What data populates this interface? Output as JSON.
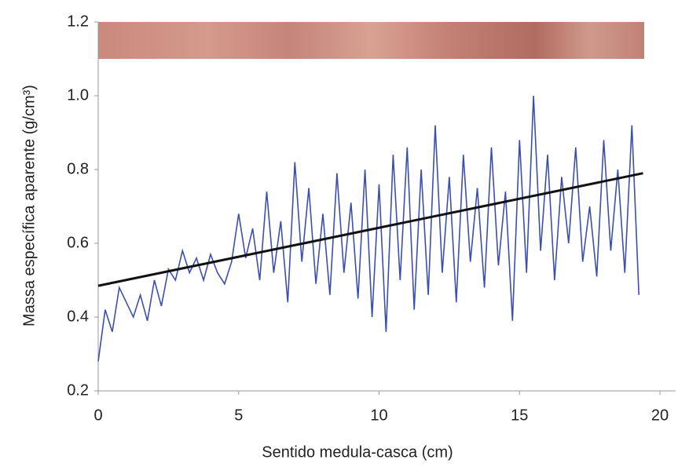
{
  "chart_data": {
    "type": "line",
    "x_label": "Sentido medula-casca (cm)",
    "y_label": "Massa específica aparente (g/cm³)",
    "xlim": [
      0,
      20.5
    ],
    "ylim": [
      0.2,
      1.2
    ],
    "xticks": [
      0,
      5,
      10,
      15,
      20
    ],
    "yticks": [
      0.2,
      0.4,
      0.6,
      0.8,
      {
        "value": 1,
        "label": "1.0"
      },
      1.2
    ],
    "series": [
      {
        "color": "#3a4fb0",
        "x": [
          0,
          0.25,
          0.5,
          0.75,
          1,
          1.25,
          1.5,
          1.75,
          2,
          2.25,
          2.5,
          2.75,
          3,
          3.25,
          3.5,
          3.75,
          4,
          4.25,
          4.5,
          4.75,
          5,
          5.25,
          5.5,
          5.75,
          6,
          6.25,
          6.5,
          6.75,
          7,
          7.25,
          7.5,
          7.75,
          8,
          8.25,
          8.5,
          8.75,
          9,
          9.25,
          9.5,
          9.75,
          10,
          10.25,
          10.5,
          10.75,
          11,
          11.25,
          11.5,
          11.75,
          12,
          12.25,
          12.5,
          12.75,
          13,
          13.25,
          13.5,
          13.75,
          14,
          14.25,
          14.5,
          14.75,
          15,
          15.25,
          15.5,
          15.75,
          16,
          16.25,
          16.5,
          16.75,
          17,
          17.25,
          17.5,
          17.75,
          18,
          18.25,
          18.5,
          18.75,
          19,
          19.25
        ],
        "values": [
          0.28,
          0.42,
          0.36,
          0.48,
          0.44,
          0.4,
          0.46,
          0.39,
          0.5,
          0.43,
          0.53,
          0.5,
          0.58,
          0.52,
          0.56,
          0.5,
          0.57,
          0.52,
          0.49,
          0.55,
          0.68,
          0.56,
          0.64,
          0.5,
          0.74,
          0.52,
          0.66,
          0.44,
          0.82,
          0.55,
          0.75,
          0.49,
          0.68,
          0.46,
          0.79,
          0.52,
          0.71,
          0.45,
          0.8,
          0.4,
          0.76,
          0.36,
          0.84,
          0.5,
          0.86,
          0.42,
          0.8,
          0.46,
          0.92,
          0.52,
          0.78,
          0.44,
          0.84,
          0.55,
          0.75,
          0.48,
          0.86,
          0.54,
          0.74,
          0.39,
          0.88,
          0.52,
          1.0,
          0.58,
          0.84,
          0.5,
          0.78,
          0.6,
          0.86,
          0.55,
          0.7,
          0.51,
          0.88,
          0.58,
          0.8,
          0.52,
          0.92,
          0.46
        ]
      },
      {
        "color": "#111111",
        "x": [
          0,
          19.4
        ],
        "values": [
          0.485,
          0.79
        ]
      }
    ]
  }
}
